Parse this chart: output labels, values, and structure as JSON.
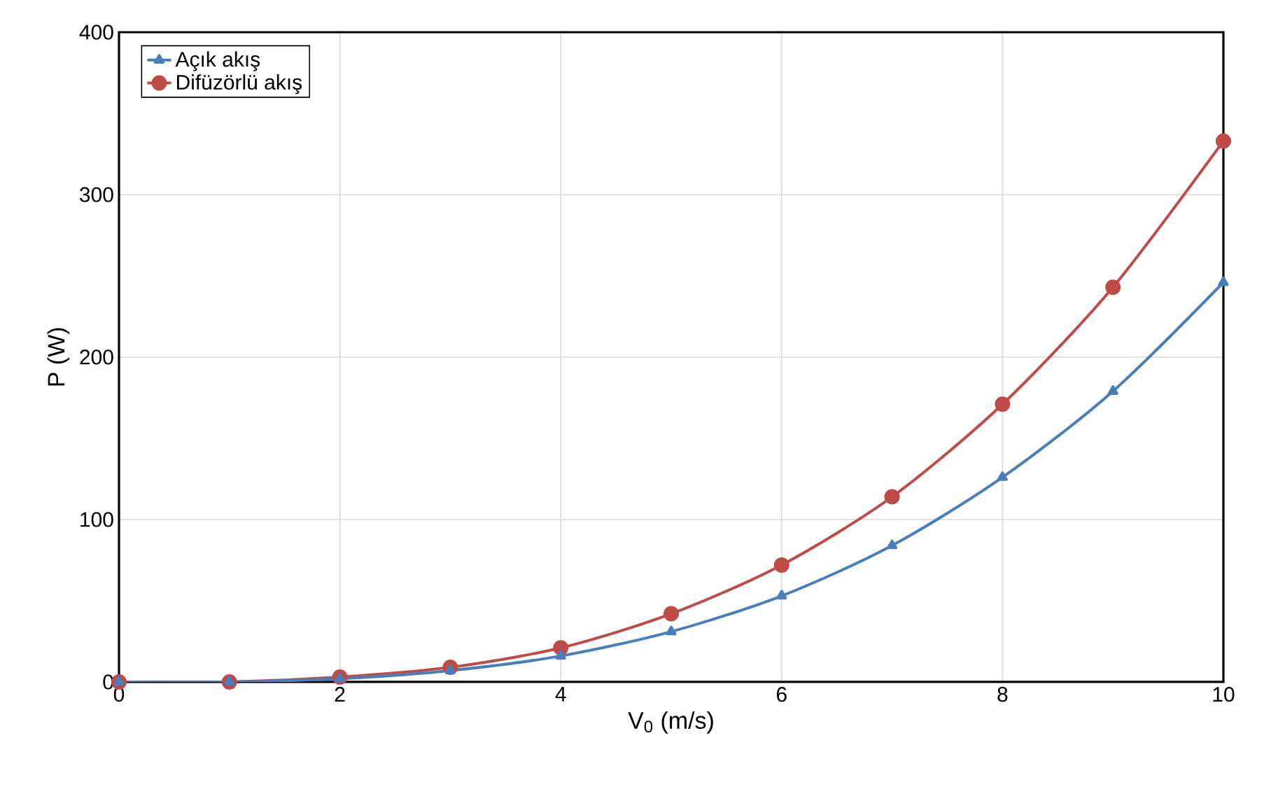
{
  "chart_data": {
    "type": "line",
    "xlabel": "V$_{0}$ (m/s)",
    "ylabel": "P (W)",
    "x": [
      0,
      1,
      2,
      3,
      4,
      5,
      6,
      7,
      8,
      9,
      10
    ],
    "series": [
      {
        "name": "Açık akış",
        "color": "#4a7ebb",
        "marker": "triangle",
        "values": [
          0,
          0,
          2,
          7,
          16,
          31,
          53,
          84,
          126,
          179,
          246
        ]
      },
      {
        "name": "Difüzörlü akış",
        "color": "#be4b48",
        "marker": "circle",
        "values": [
          0,
          0,
          3,
          9,
          21,
          42,
          72,
          114,
          171,
          243,
          333
        ]
      }
    ],
    "xlim": [
      0,
      10
    ],
    "ylim": [
      0,
      400
    ],
    "xticks": [
      0,
      2,
      4,
      6,
      8,
      10
    ],
    "yticks": [
      0,
      100,
      200,
      300,
      400
    ],
    "grid": true,
    "legend": "top left",
    "line_style": "solid"
  }
}
